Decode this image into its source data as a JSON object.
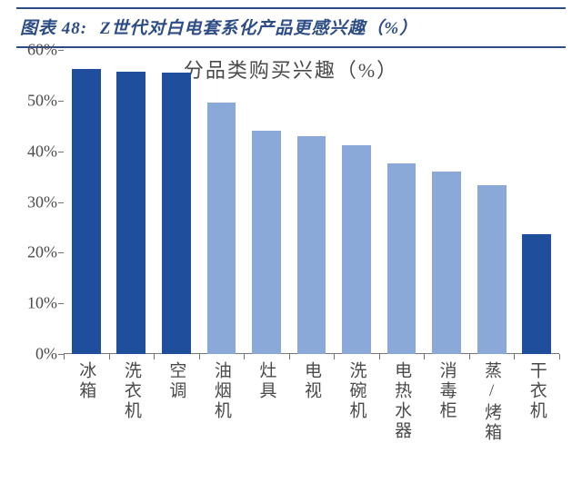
{
  "header": {
    "figure_prefix": "图表 48:",
    "title": "Z世代对白电套系化产品更感兴趣（%）"
  },
  "chart": {
    "type": "bar",
    "title": "分品类购买兴趣（%）",
    "title_fontsize": 22,
    "title_color": "#4a4a4a",
    "background_color": "#ffffff",
    "axis_color": "#747474",
    "label_color": "#4a4a4a",
    "label_fontsize": 18,
    "xlabel_fontsize": 19,
    "ylim_min": 0,
    "ylim_max": 60,
    "ytick_step": 10,
    "ytick_suffix": "%",
    "bar_width_ratio": 0.64,
    "highlight_color": "#1f4e9c",
    "normal_color": "#8aa8d8",
    "categories": [
      "冰箱",
      "洗衣机",
      "空调",
      "油烟机",
      "灶具",
      "电视",
      "洗碗机",
      "电热水器",
      "消毒柜",
      "蒸/烤箱",
      "干衣机"
    ],
    "values": [
      56.2,
      55.7,
      55.6,
      49.7,
      44.0,
      42.9,
      41.2,
      37.6,
      36.0,
      33.4,
      23.6
    ],
    "highlight_indices": [
      0,
      1,
      2,
      10
    ]
  },
  "footer": {
    "source_fragment": ""
  }
}
